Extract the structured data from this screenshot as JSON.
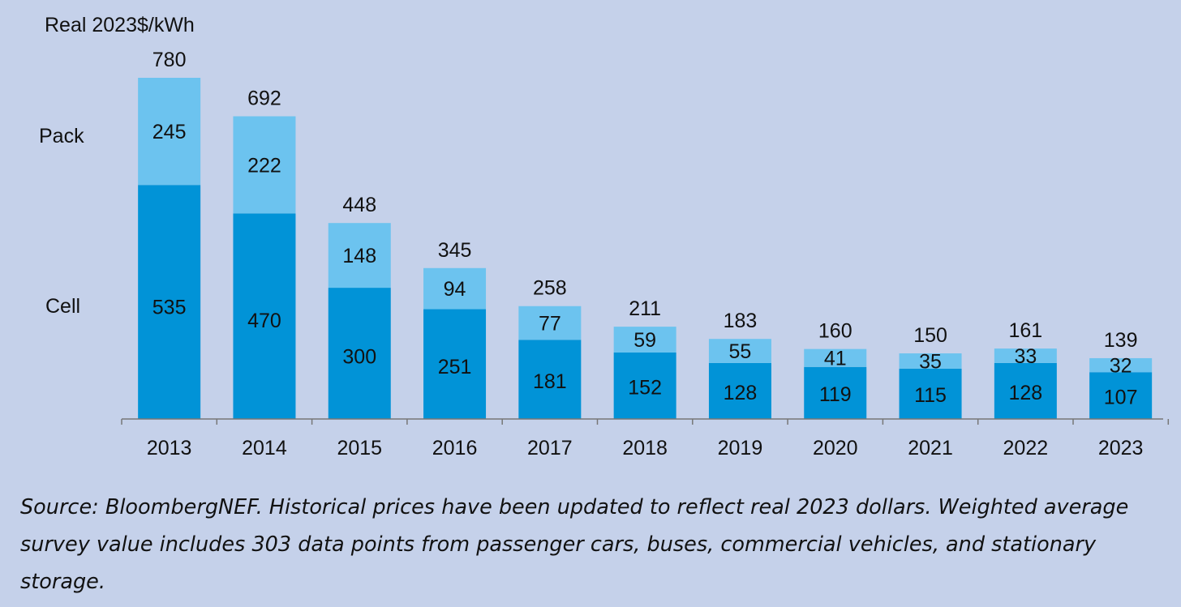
{
  "chart_data": {
    "type": "bar",
    "stacked": true,
    "ylabel": "Real 2023$/kWh",
    "categories": [
      "2013",
      "2014",
      "2015",
      "2016",
      "2017",
      "2018",
      "2019",
      "2020",
      "2021",
      "2022",
      "2023"
    ],
    "series": [
      {
        "name": "Cell",
        "values": [
          535,
          470,
          300,
          251,
          181,
          152,
          128,
          119,
          115,
          128,
          107
        ],
        "color": "#0193d7"
      },
      {
        "name": "Pack",
        "values": [
          245,
          222,
          148,
          94,
          77,
          59,
          55,
          41,
          35,
          33,
          32
        ],
        "color": "#6cc3ef"
      }
    ],
    "totals": [
      780,
      692,
      448,
      345,
      258,
      211,
      183,
      160,
      150,
      161,
      139
    ],
    "ylim": [
      0,
      780
    ],
    "grid": false,
    "legend_placement": "left"
  },
  "source_note": "Source: BloombergNEF. Historical prices have been updated to reflect real 2023 dollars. Weighted average survey value includes 303 data points from passenger cars, buses, commercial vehicles, and stationary storage."
}
